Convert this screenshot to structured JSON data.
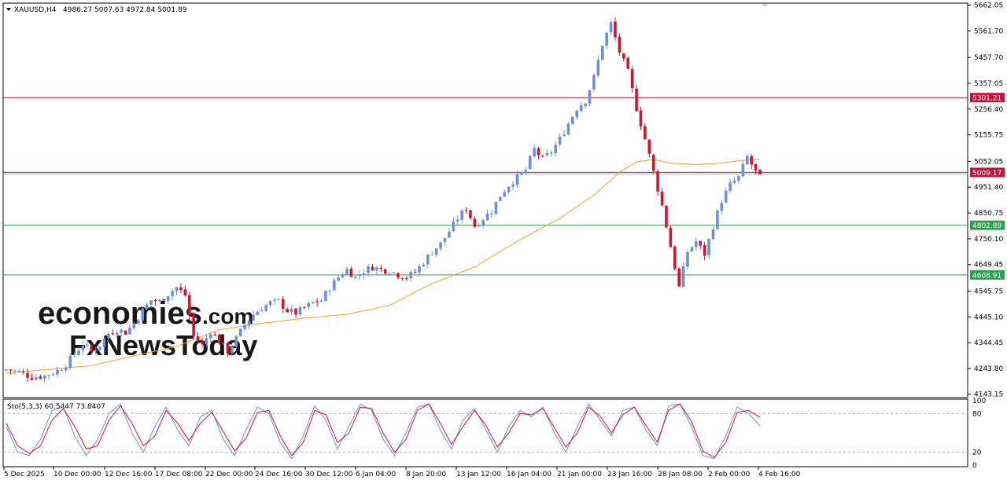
{
  "chart_data": {
    "type": "candlestick",
    "symbol_header": "XAUUSD,H4",
    "ohlc_header": "4986.27 5007.63 4972.84 5001.89",
    "y_ticks": [
      5662.05,
      5561.7,
      5457.7,
      5357.05,
      5256.4,
      5155.75,
      5052.05,
      4951.4,
      4850.75,
      4750.1,
      4649.45,
      4545.75,
      4445.1,
      4344.45,
      4243.8,
      4143.15
    ],
    "x_ticks": [
      "5 Dec 2025",
      "10 Dec 00:00",
      "12 Dec 16:00",
      "17 Dec 08:00",
      "22 Dec 00:00",
      "24 Dec 16:00",
      "30 Dec 12:00",
      "6 Jan 04:00",
      "8 Jan 20:00",
      "13 Jan 12:00",
      "16 Jan 04:00",
      "21 Jan 00:00",
      "23 Jan 16:00",
      "28 Jan 08:00",
      "2 Feb 00:00",
      "4 Feb 16:00"
    ],
    "ylim": [
      4130,
      5670
    ],
    "hlines": [
      {
        "value": 5301.21,
        "label": "5301.21",
        "color": "#c2143c"
      },
      {
        "value": 5009.17,
        "label": "5009.17",
        "color": "#c2143c"
      },
      {
        "value": 4802.89,
        "label": "4802.89",
        "color": "#2e9e50"
      },
      {
        "value": 4608.91,
        "label": "4608.91",
        "color": "#2e9e50"
      }
    ],
    "current_price": "5001.89",
    "candles": {
      "up_color": "#6f8fd6",
      "down_color": "#d4142a",
      "close_path": [
        [
          0,
          4240
        ],
        [
          3,
          4230
        ],
        [
          6,
          4210
        ],
        [
          9,
          4215
        ],
        [
          12,
          4235
        ],
        [
          14,
          4260
        ],
        [
          16,
          4300
        ],
        [
          18,
          4340
        ],
        [
          20,
          4310
        ],
        [
          22,
          4335
        ],
        [
          24,
          4380
        ],
        [
          26,
          4395
        ],
        [
          28,
          4385
        ],
        [
          30,
          4420
        ],
        [
          32,
          4470
        ],
        [
          34,
          4510
        ],
        [
          36,
          4505
        ],
        [
          38,
          4535
        ],
        [
          40,
          4560
        ],
        [
          42,
          4530
        ],
        [
          44,
          4370
        ],
        [
          46,
          4335
        ],
        [
          48,
          4390
        ],
        [
          50,
          4350
        ],
        [
          52,
          4310
        ],
        [
          54,
          4360
        ],
        [
          56,
          4415
        ],
        [
          58,
          4455
        ],
        [
          60,
          4480
        ],
        [
          62,
          4500
        ],
        [
          64,
          4505
        ],
        [
          66,
          4470
        ],
        [
          68,
          4460
        ],
        [
          70,
          4480
        ],
        [
          72,
          4500
        ],
        [
          74,
          4510
        ],
        [
          76,
          4560
        ],
        [
          78,
          4600
        ],
        [
          80,
          4630
        ],
        [
          82,
          4600
        ],
        [
          84,
          4625
        ],
        [
          86,
          4640
        ],
        [
          88,
          4630
        ],
        [
          90,
          4625
        ],
        [
          92,
          4610
        ],
        [
          94,
          4600
        ],
        [
          96,
          4620
        ],
        [
          98,
          4660
        ],
        [
          100,
          4700
        ],
        [
          102,
          4730
        ],
        [
          104,
          4780
        ],
        [
          106,
          4830
        ],
        [
          108,
          4870
        ],
        [
          110,
          4800
        ],
        [
          112,
          4830
        ],
        [
          114,
          4860
        ],
        [
          116,
          4920
        ],
        [
          118,
          4960
        ],
        [
          120,
          4990
        ],
        [
          122,
          5020
        ],
        [
          124,
          5100
        ],
        [
          126,
          5060
        ],
        [
          128,
          5090
        ],
        [
          130,
          5140
        ],
        [
          132,
          5200
        ],
        [
          134,
          5260
        ],
        [
          136,
          5290
        ],
        [
          138,
          5380
        ],
        [
          140,
          5510
        ],
        [
          142,
          5590
        ],
        [
          144,
          5480
        ],
        [
          146,
          5400
        ],
        [
          148,
          5260
        ],
        [
          150,
          5140
        ],
        [
          152,
          5010
        ],
        [
          154,
          4880
        ],
        [
          156,
          4720
        ],
        [
          158,
          4560
        ],
        [
          160,
          4700
        ],
        [
          162,
          4740
        ],
        [
          164,
          4690
        ],
        [
          166,
          4800
        ],
        [
          168,
          4900
        ],
        [
          170,
          4960
        ],
        [
          172,
          4990
        ],
        [
          174,
          5070
        ],
        [
          176,
          5010
        ],
        [
          177,
          5001.89
        ]
      ],
      "count": 178
    },
    "ma": {
      "color": "#f0a030",
      "path": [
        [
          0,
          4225
        ],
        [
          20,
          4255
        ],
        [
          40,
          4330
        ],
        [
          50,
          4395
        ],
        [
          60,
          4420
        ],
        [
          70,
          4440
        ],
        [
          80,
          4455
        ],
        [
          90,
          4490
        ],
        [
          100,
          4575
        ],
        [
          110,
          4640
        ],
        [
          120,
          4740
        ],
        [
          130,
          4830
        ],
        [
          138,
          4920
        ],
        [
          144,
          5010
        ],
        [
          148,
          5050
        ],
        [
          152,
          5060
        ],
        [
          156,
          5045
        ],
        [
          162,
          5040
        ],
        [
          168,
          5045
        ],
        [
          172,
          5055
        ],
        [
          177,
          5060
        ]
      ]
    },
    "stochastic": {
      "label": "Sto(5,3,3) 60.5447 73.8407",
      "levels": [
        100,
        80,
        20,
        0
      ],
      "ylim": [
        0,
        100
      ],
      "main_color": "#6f8fd6",
      "signal_color": "#d4142a",
      "main": [
        60,
        20,
        15,
        40,
        85,
        90,
        45,
        15,
        40,
        80,
        95,
        50,
        20,
        60,
        90,
        55,
        30,
        75,
        85,
        40,
        15,
        55,
        90,
        80,
        35,
        10,
        45,
        92,
        70,
        25,
        60,
        95,
        85,
        40,
        15,
        50,
        90,
        95,
        55,
        25,
        70,
        88,
        55,
        20,
        60,
        85,
        75,
        90,
        50,
        20,
        60,
        95,
        70,
        45,
        85,
        90,
        55,
        30,
        92,
        95,
        60,
        15,
        10,
        45,
        90,
        80,
        61
      ],
      "signal": [
        65,
        30,
        18,
        30,
        70,
        88,
        60,
        25,
        30,
        70,
        92,
        65,
        30,
        45,
        85,
        65,
        38,
        65,
        82,
        52,
        22,
        42,
        82,
        85,
        45,
        15,
        35,
        85,
        78,
        35,
        50,
        90,
        88,
        50,
        20,
        40,
        85,
        95,
        65,
        32,
        60,
        85,
        62,
        28,
        50,
        80,
        78,
        88,
        58,
        28,
        50,
        90,
        76,
        50,
        78,
        90,
        62,
        36,
        85,
        95,
        68,
        22,
        12,
        35,
        82,
        85,
        74
      ]
    }
  },
  "watermark": {
    "line1": "economies",
    "line1_suffix": ".com",
    "line2": "FxNewsToday",
    "color1": "#f0b488",
    "color2": "#c8c8c8"
  }
}
